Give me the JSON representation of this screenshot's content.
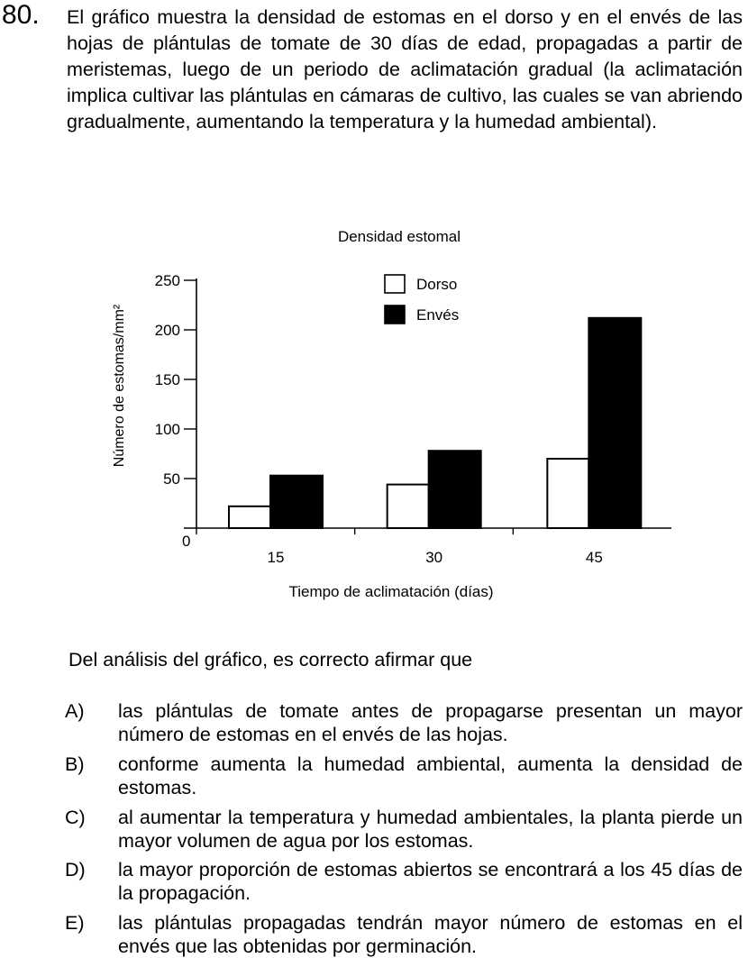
{
  "question": {
    "number": "80.",
    "stem": "El gráfico muestra la densidad de estomas en el dorso y en el envés de las hojas de plántulas de tomate de 30 días de edad, propagadas a partir de meristemas, luego de un periodo de aclimatación gradual (la aclimatación implica cultivar las plántulas en cámaras de cultivo, las cuales se van abriendo gradualmente, aumentando la temperatura y la humedad ambiental).",
    "prompt": "Del análisis del gráfico, es correcto afirmar que",
    "options": [
      {
        "letter": "A)",
        "text": "las plántulas de tomate antes de propagarse presentan un mayor número de estomas en el envés de las hojas."
      },
      {
        "letter": "B)",
        "text": "conforme aumenta la humedad ambiental, aumenta la densidad de estomas."
      },
      {
        "letter": "C)",
        "text": "al aumentar la temperatura y humedad ambientales, la planta pierde un mayor volumen de agua por los estomas."
      },
      {
        "letter": "D)",
        "text": "la mayor proporción de estomas abiertos se encontrará a los 45 días de la propagación."
      },
      {
        "letter": "E)",
        "text": "las plántulas propagadas tendrán mayor número de estomas en el envés que las obtenidas por germinación."
      }
    ]
  },
  "chart_data": {
    "type": "bar",
    "title": "Densidad estomal",
    "xlabel": "Tiempo de aclimatación (días)",
    "ylabel": "Número de estomas/mm²",
    "categories": [
      "15",
      "30",
      "45"
    ],
    "series": [
      {
        "name": "Dorso",
        "values": [
          22,
          44,
          70
        ],
        "fill": "#ffffff"
      },
      {
        "name": "Envés",
        "values": [
          53,
          78,
          212
        ],
        "fill": "#000000"
      }
    ],
    "ylim": [
      0,
      250
    ],
    "yticks": [
      50,
      100,
      150,
      200,
      250
    ],
    "origin_label": "0",
    "grid": false,
    "legend_position": "top-right"
  }
}
